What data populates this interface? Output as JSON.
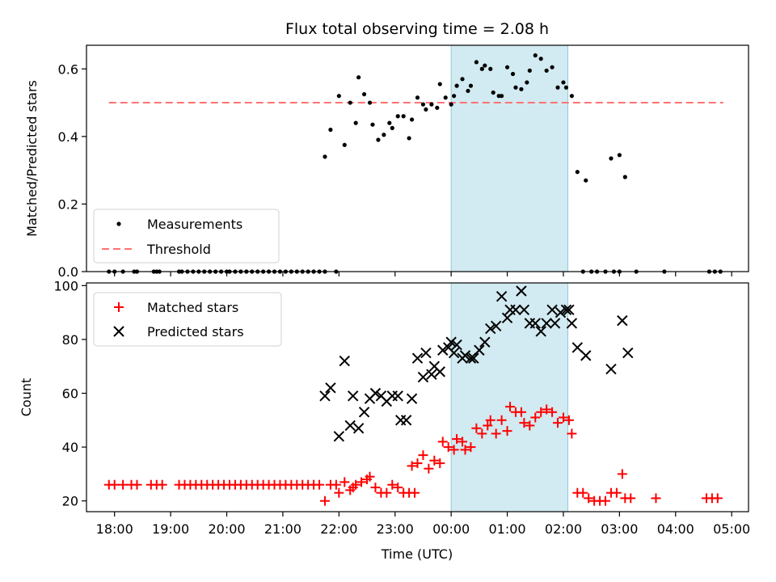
{
  "title": "Flux total observing time = 2.08 h",
  "xlabel": "Time (UTC)",
  "x_ticks": [
    "18:00",
    "19:00",
    "20:00",
    "21:00",
    "22:00",
    "23:00",
    "00:00",
    "01:00",
    "02:00",
    "03:00",
    "04:00",
    "05:00"
  ],
  "chart_data": [
    {
      "type": "scatter",
      "ylabel": "Matched/Predicted stars",
      "ylim": [
        0,
        0.67
      ],
      "y_ticks": [
        "0.0",
        "0.2",
        "0.4",
        "0.6"
      ],
      "xrange_hours": [
        -6.5,
        5.3
      ],
      "highlight_span": [
        0,
        2.08
      ],
      "highlight_color": "#add8e6",
      "legend_position": "lower-left",
      "series": [
        {
          "name": "Measurements",
          "color": "#000000",
          "marker": "dot",
          "points": [
            [
              -6.1,
              0
            ],
            [
              -6.0,
              0
            ],
            [
              -5.85,
              0
            ],
            [
              -5.65,
              0
            ],
            [
              -5.6,
              0
            ],
            [
              -5.3,
              0
            ],
            [
              -5.25,
              0
            ],
            [
              -5.2,
              0
            ],
            [
              -4.85,
              0
            ],
            [
              -4.8,
              0
            ],
            [
              -4.7,
              0
            ],
            [
              -4.6,
              0
            ],
            [
              -4.5,
              0
            ],
            [
              -4.4,
              0
            ],
            [
              -4.3,
              0
            ],
            [
              -4.2,
              0
            ],
            [
              -4.1,
              0
            ],
            [
              -4.0,
              0
            ],
            [
              -3.95,
              0
            ],
            [
              -3.85,
              0
            ],
            [
              -3.75,
              0
            ],
            [
              -3.65,
              0
            ],
            [
              -3.55,
              0
            ],
            [
              -3.45,
              0
            ],
            [
              -3.35,
              0
            ],
            [
              -3.25,
              0
            ],
            [
              -3.15,
              0
            ],
            [
              -3.05,
              0
            ],
            [
              -2.95,
              0
            ],
            [
              -2.85,
              0
            ],
            [
              -2.75,
              0
            ],
            [
              -2.65,
              0
            ],
            [
              -2.55,
              0
            ],
            [
              -2.45,
              0
            ],
            [
              -2.35,
              0
            ],
            [
              -2.25,
              0
            ],
            [
              -2.05,
              0
            ],
            [
              -2.25,
              0.34
            ],
            [
              -2.15,
              0.42
            ],
            [
              -2.0,
              0.52
            ],
            [
              -1.9,
              0.375
            ],
            [
              -1.8,
              0.5
            ],
            [
              -1.7,
              0.44
            ],
            [
              -1.65,
              0.575
            ],
            [
              -1.55,
              0.525
            ],
            [
              -1.45,
              0.5
            ],
            [
              -1.4,
              0.435
            ],
            [
              -1.3,
              0.39
            ],
            [
              -1.2,
              0.405
            ],
            [
              -1.1,
              0.44
            ],
            [
              -1.05,
              0.425
            ],
            [
              -0.95,
              0.46
            ],
            [
              -0.85,
              0.46
            ],
            [
              -0.75,
              0.395
            ],
            [
              -0.7,
              0.45
            ],
            [
              -0.6,
              0.515
            ],
            [
              -0.5,
              0.495
            ],
            [
              -0.45,
              0.48
            ],
            [
              -0.35,
              0.495
            ],
            [
              -0.25,
              0.485
            ],
            [
              -0.2,
              0.555
            ],
            [
              -0.1,
              0.515
            ],
            [
              0.0,
              0.495
            ],
            [
              0.05,
              0.52
            ],
            [
              0.1,
              0.55
            ],
            [
              0.2,
              0.57
            ],
            [
              0.3,
              0.535
            ],
            [
              0.35,
              0.55
            ],
            [
              0.45,
              0.62
            ],
            [
              0.55,
              0.6
            ],
            [
              0.6,
              0.61
            ],
            [
              0.7,
              0.6
            ],
            [
              0.75,
              0.53
            ],
            [
              0.85,
              0.52
            ],
            [
              0.9,
              0.52
            ],
            [
              1.0,
              0.605
            ],
            [
              1.1,
              0.585
            ],
            [
              1.15,
              0.545
            ],
            [
              1.25,
              0.54
            ],
            [
              1.35,
              0.56
            ],
            [
              1.4,
              0.595
            ],
            [
              1.5,
              0.64
            ],
            [
              1.6,
              0.63
            ],
            [
              1.7,
              0.595
            ],
            [
              1.8,
              0.605
            ],
            [
              1.9,
              0.545
            ],
            [
              2.0,
              0.56
            ],
            [
              2.05,
              0.545
            ],
            [
              2.15,
              0.52
            ],
            [
              2.25,
              0.295
            ],
            [
              2.4,
              0.27
            ],
            [
              2.35,
              0
            ],
            [
              2.5,
              0
            ],
            [
              2.6,
              0
            ],
            [
              2.75,
              0
            ],
            [
              2.9,
              0
            ],
            [
              3.0,
              0
            ],
            [
              3.3,
              0
            ],
            [
              3.8,
              0
            ],
            [
              4.6,
              0
            ],
            [
              4.7,
              0
            ],
            [
              4.8,
              0
            ],
            [
              3.0,
              0.345
            ],
            [
              3.1,
              0.28
            ],
            [
              2.85,
              0.335
            ]
          ]
        },
        {
          "name": "Threshold",
          "color": "#ff7373",
          "line": "dashed",
          "points": [
            [
              -6.1,
              0.5
            ],
            [
              4.85,
              0.5
            ]
          ]
        }
      ]
    },
    {
      "type": "scatter",
      "ylabel": "Count",
      "ylim": [
        16,
        101
      ],
      "y_ticks": [
        "20",
        "40",
        "60",
        "80",
        "100"
      ],
      "xrange_hours": [
        -6.5,
        5.3
      ],
      "highlight_span": [
        0,
        2.08
      ],
      "highlight_color": "#add8e6",
      "legend_position": "upper-left",
      "series": [
        {
          "name": "Matched stars",
          "color": "#ff0000",
          "marker": "plus",
          "points": [
            [
              -6.1,
              26
            ],
            [
              -6.0,
              26
            ],
            [
              -5.85,
              26
            ],
            [
              -5.7,
              26
            ],
            [
              -5.6,
              26
            ],
            [
              -5.35,
              26
            ],
            [
              -5.25,
              26
            ],
            [
              -5.15,
              26
            ],
            [
              -4.85,
              26
            ],
            [
              -4.75,
              26
            ],
            [
              -4.65,
              26
            ],
            [
              -4.55,
              26
            ],
            [
              -4.45,
              26
            ],
            [
              -4.35,
              26
            ],
            [
              -4.25,
              26
            ],
            [
              -4.15,
              26
            ],
            [
              -4.05,
              26
            ],
            [
              -3.95,
              26
            ],
            [
              -3.85,
              26
            ],
            [
              -3.75,
              26
            ],
            [
              -3.65,
              26
            ],
            [
              -3.55,
              26
            ],
            [
              -3.45,
              26
            ],
            [
              -3.35,
              26
            ],
            [
              -3.25,
              26
            ],
            [
              -3.15,
              26
            ],
            [
              -3.05,
              26
            ],
            [
              -2.95,
              26
            ],
            [
              -2.85,
              26
            ],
            [
              -2.75,
              26
            ],
            [
              -2.65,
              26
            ],
            [
              -2.55,
              26
            ],
            [
              -2.45,
              26
            ],
            [
              -2.35,
              26
            ],
            [
              -2.15,
              26
            ],
            [
              -2.05,
              26
            ],
            [
              -2.25,
              20
            ],
            [
              -2.0,
              23
            ],
            [
              -1.9,
              27
            ],
            [
              -1.8,
              24
            ],
            [
              -1.75,
              25
            ],
            [
              -1.7,
              26
            ],
            [
              -1.6,
              27
            ],
            [
              -1.5,
              28
            ],
            [
              -1.45,
              29
            ],
            [
              -1.35,
              25
            ],
            [
              -1.25,
              23
            ],
            [
              -1.15,
              23
            ],
            [
              -1.05,
              26
            ],
            [
              -0.95,
              25
            ],
            [
              -0.85,
              23
            ],
            [
              -0.75,
              23
            ],
            [
              -0.65,
              23
            ],
            [
              -0.7,
              33
            ],
            [
              -0.6,
              34
            ],
            [
              -0.5,
              37
            ],
            [
              -0.4,
              32
            ],
            [
              -0.3,
              35
            ],
            [
              -0.2,
              34
            ],
            [
              -0.15,
              42
            ],
            [
              -0.05,
              40
            ],
            [
              0.05,
              39
            ],
            [
              0.1,
              43
            ],
            [
              0.2,
              42
            ],
            [
              0.25,
              39
            ],
            [
              0.35,
              40
            ],
            [
              0.45,
              47
            ],
            [
              0.55,
              45
            ],
            [
              0.65,
              48
            ],
            [
              0.7,
              50
            ],
            [
              0.8,
              45
            ],
            [
              0.9,
              50
            ],
            [
              1.0,
              46
            ],
            [
              1.05,
              55
            ],
            [
              1.15,
              53
            ],
            [
              1.25,
              53
            ],
            [
              1.3,
              49
            ],
            [
              1.4,
              48
            ],
            [
              1.5,
              51
            ],
            [
              1.6,
              53
            ],
            [
              1.7,
              54
            ],
            [
              1.8,
              53
            ],
            [
              1.9,
              49
            ],
            [
              2.0,
              51
            ],
            [
              2.1,
              50
            ],
            [
              2.15,
              45
            ],
            [
              2.25,
              23
            ],
            [
              2.35,
              23
            ],
            [
              2.45,
              21
            ],
            [
              2.55,
              20
            ],
            [
              2.65,
              20
            ],
            [
              2.75,
              20
            ],
            [
              2.85,
              23
            ],
            [
              2.95,
              23
            ],
            [
              3.05,
              30
            ],
            [
              3.1,
              21
            ],
            [
              3.2,
              21
            ],
            [
              3.65,
              21
            ],
            [
              4.55,
              21
            ],
            [
              4.65,
              21
            ],
            [
              4.75,
              21
            ]
          ]
        },
        {
          "name": "Predicted stars",
          "color": "#000000",
          "marker": "x",
          "points": [
            [
              -2.25,
              59
            ],
            [
              -2.15,
              62
            ],
            [
              -2.0,
              44
            ],
            [
              -1.9,
              72
            ],
            [
              -1.8,
              48
            ],
            [
              -1.75,
              59
            ],
            [
              -1.65,
              47
            ],
            [
              -1.55,
              53
            ],
            [
              -1.45,
              58
            ],
            [
              -1.35,
              60
            ],
            [
              -1.25,
              59
            ],
            [
              -1.15,
              57
            ],
            [
              -1.05,
              59
            ],
            [
              -0.95,
              59
            ],
            [
              -0.9,
              50
            ],
            [
              -0.8,
              50
            ],
            [
              -0.7,
              58
            ],
            [
              -0.6,
              73
            ],
            [
              -0.5,
              66
            ],
            [
              -0.45,
              75
            ],
            [
              -0.35,
              67
            ],
            [
              -0.3,
              70
            ],
            [
              -0.2,
              68
            ],
            [
              -0.15,
              76
            ],
            [
              -0.05,
              77
            ],
            [
              0.0,
              79
            ],
            [
              0.05,
              75
            ],
            [
              0.1,
              78
            ],
            [
              0.2,
              73
            ],
            [
              0.25,
              74
            ],
            [
              0.35,
              73
            ],
            [
              0.4,
              73
            ],
            [
              0.5,
              76
            ],
            [
              0.6,
              79
            ],
            [
              0.7,
              84
            ],
            [
              0.8,
              85
            ],
            [
              0.9,
              96
            ],
            [
              1.0,
              88
            ],
            [
              1.05,
              91
            ],
            [
              1.15,
              91
            ],
            [
              1.25,
              98
            ],
            [
              1.3,
              91
            ],
            [
              1.4,
              86
            ],
            [
              1.5,
              86
            ],
            [
              1.6,
              83
            ],
            [
              1.7,
              86
            ],
            [
              1.8,
              91
            ],
            [
              1.85,
              86
            ],
            [
              1.95,
              90
            ],
            [
              2.05,
              91
            ],
            [
              2.1,
              91
            ],
            [
              2.15,
              86
            ],
            [
              2.25,
              77
            ],
            [
              2.4,
              74
            ],
            [
              2.85,
              69
            ],
            [
              3.05,
              87
            ],
            [
              3.15,
              75
            ]
          ]
        }
      ]
    }
  ]
}
